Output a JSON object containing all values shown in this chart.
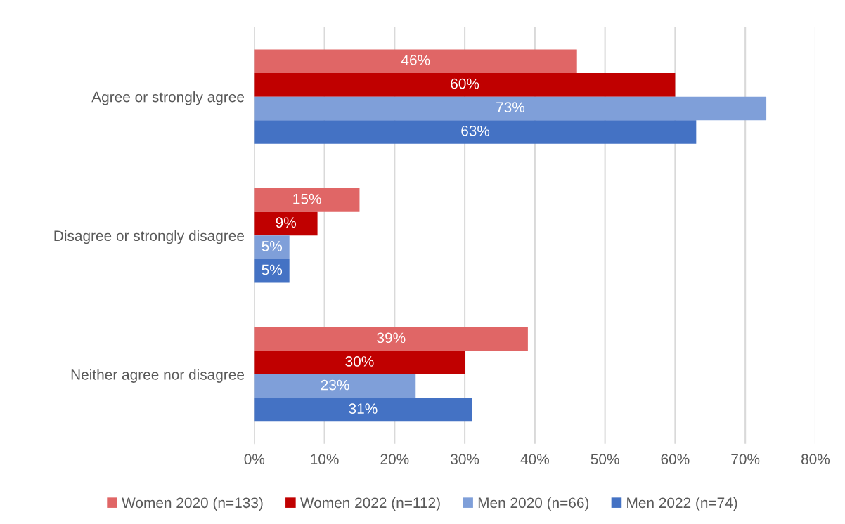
{
  "chart_data": {
    "type": "bar",
    "orientation": "horizontal",
    "categories": [
      "Agree or strongly agree",
      "Disagree or strongly disagree",
      "Neither agree nor disagree"
    ],
    "series": [
      {
        "name": "Women 2020 (n=133)",
        "color": "#e06666",
        "values": [
          46,
          15,
          39
        ],
        "value_labels": [
          "46%",
          "15%",
          "39%"
        ]
      },
      {
        "name": "Women 2022 (n=112)",
        "color": "#c00000",
        "values": [
          60,
          9,
          30
        ],
        "value_labels": [
          "60%",
          "9%",
          "30%"
        ]
      },
      {
        "name": "Men 2020 (n=66)",
        "color": "#7f9fd9",
        "values": [
          73,
          5,
          23
        ],
        "value_labels": [
          "73%",
          "5%",
          "23%"
        ]
      },
      {
        "name": "Men 2022 (n=74)",
        "color": "#4472c4",
        "values": [
          63,
          5,
          31
        ],
        "value_labels": [
          "63%",
          "5%",
          "31%"
        ]
      }
    ],
    "xlim": [
      0,
      80
    ],
    "xticks": [
      {
        "value": 0,
        "label": "0%"
      },
      {
        "value": 10,
        "label": "10%"
      },
      {
        "value": 20,
        "label": "20%"
      },
      {
        "value": 30,
        "label": "30%"
      },
      {
        "value": 40,
        "label": "40%"
      },
      {
        "value": 50,
        "label": "50%"
      },
      {
        "value": 60,
        "label": "60%"
      },
      {
        "value": 70,
        "label": "70%"
      },
      {
        "value": 80,
        "label": "80%"
      }
    ],
    "grid": "x",
    "legend": "bottom"
  }
}
